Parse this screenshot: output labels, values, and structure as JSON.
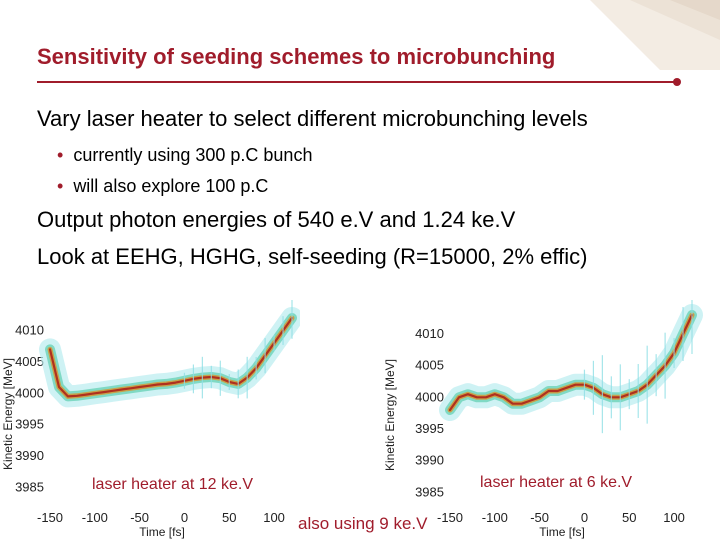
{
  "slide": {
    "title": "Sensitivity of seeding schemes to microbunching",
    "bullets": [
      "Vary laser heater to select different microbunching levels",
      "Output photon energies of 540 e.V and 1.24 ke.V",
      "Look at EEHG, HGHG, self-seeding (R=15000, 2% effic)"
    ],
    "sub_bullets": [
      "currently using 300 p.C bunch",
      "will also explore 100 p.C"
    ],
    "bottom_note": "also using 9 ke.V",
    "accent_color": "#a01c2b"
  },
  "chart_data": [
    {
      "type": "scatter",
      "xlabel": "Time [fs]",
      "ylabel": "Kinetic Energy [MeV]",
      "x_ticks": [
        -150,
        -100,
        -50,
        0,
        50,
        100
      ],
      "y_ticks": [
        3985,
        3990,
        3995,
        4000,
        4005,
        4010
      ],
      "xlim": [
        -150,
        120
      ],
      "ylim": [
        3983,
        4012
      ],
      "annotation": "laser heater at 12 ke.V",
      "series": [
        {
          "x": [
            -150,
            -140,
            -130,
            -120,
            -110,
            -100,
            -90,
            -80,
            -70,
            -60,
            -50,
            -40,
            -30,
            -20,
            -10,
            0,
            10,
            20,
            30,
            40,
            50,
            60,
            70,
            80,
            90,
            100,
            110,
            120
          ],
          "y": [
            4007,
            4001,
            3999.5,
            3999.6,
            3999.8,
            4000,
            4000.2,
            4000.4,
            4000.6,
            4000.8,
            4001,
            4001.2,
            4001.4,
            4001.5,
            4001.7,
            4002,
            4002.3,
            4002.5,
            4002.6,
            4002.4,
            4001.8,
            4001.5,
            4002.5,
            4004,
            4006,
            4008,
            4010,
            4012
          ]
        }
      ]
    },
    {
      "type": "scatter",
      "xlabel": "Time [fs]",
      "ylabel": "Kinetic Energy [MeV]",
      "x_ticks": [
        -150,
        -100,
        -50,
        0,
        50,
        100
      ],
      "y_ticks": [
        3985,
        3990,
        3995,
        4000,
        4005,
        4010
      ],
      "xlim": [
        -150,
        120
      ],
      "ylim": [
        3983,
        4013
      ],
      "annotation": "laser heater at 6 ke.V",
      "series": [
        {
          "x": [
            -150,
            -140,
            -130,
            -120,
            -110,
            -100,
            -90,
            -80,
            -70,
            -60,
            -50,
            -40,
            -30,
            -20,
            -10,
            0,
            10,
            20,
            30,
            40,
            50,
            60,
            70,
            80,
            90,
            100,
            110,
            120
          ],
          "y": [
            3998,
            4000,
            4000.5,
            4000,
            4000,
            4000.5,
            4000,
            3999,
            3999,
            3999.5,
            4000,
            4001,
            4001,
            4001.5,
            4002,
            4002,
            4001.5,
            4000.5,
            4000,
            4000,
            4000.5,
            4001,
            4002,
            4003.5,
            4005,
            4007,
            4010,
            4013
          ]
        }
      ]
    }
  ]
}
